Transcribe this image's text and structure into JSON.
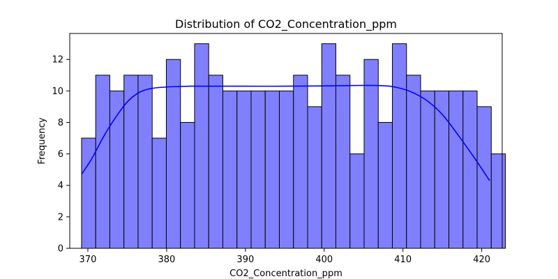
{
  "chart_data": {
    "type": "bar",
    "title": "Distribution of CO2_Concentration_ppm",
    "xlabel": "CO2_Concentration_ppm",
    "ylabel": "Frequency",
    "xlim": [
      367.7,
      422.6
    ],
    "ylim": [
      0,
      13.65
    ],
    "x_ticks": [
      370,
      380,
      390,
      400,
      410,
      420
    ],
    "y_ticks": [
      0,
      2,
      4,
      6,
      8,
      10,
      12
    ],
    "bins": {
      "start": 369.2,
      "width": 1.7935,
      "counts": [
        7,
        11,
        10,
        11,
        11,
        7,
        12,
        8,
        13,
        11,
        10,
        10,
        10,
        10,
        10,
        11,
        9,
        13,
        11,
        6,
        12,
        8,
        13,
        11,
        10,
        10,
        10,
        10,
        9,
        6
      ]
    },
    "kde": {
      "x": [
        369.2,
        370.5,
        372.0,
        373.5,
        375.0,
        376.5,
        378.0,
        380.0,
        383.0,
        386.0,
        390.0,
        395.0,
        400.0,
        405.0,
        407.5,
        409.0,
        411.0,
        413.0,
        415.0,
        417.0,
        419.0,
        421.0
      ],
      "y": [
        4.7,
        5.7,
        7.1,
        8.3,
        9.3,
        9.9,
        10.15,
        10.25,
        10.3,
        10.3,
        10.3,
        10.3,
        10.32,
        10.35,
        10.33,
        10.25,
        9.95,
        9.4,
        8.5,
        7.2,
        5.8,
        4.3
      ]
    },
    "colors": {
      "bar_fill": "#8080ff",
      "bar_edge": "#000000",
      "kde_line": "#0000ff"
    }
  }
}
